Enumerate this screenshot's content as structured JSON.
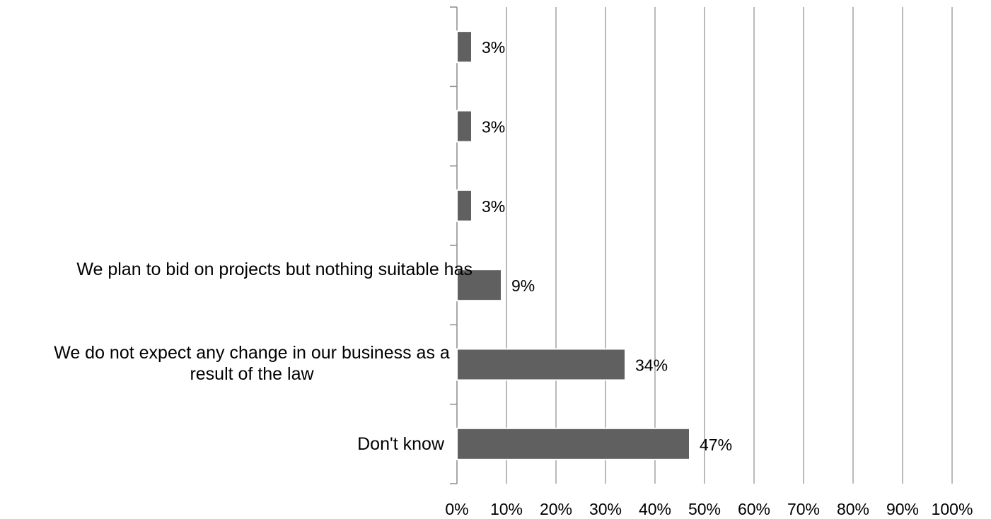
{
  "chart_data": {
    "type": "bar",
    "orientation": "horizontal",
    "title": "",
    "xlabel": "",
    "ylabel": "",
    "xlim": [
      0,
      100
    ],
    "x_ticks": [
      "0%",
      "10%",
      "20%",
      "30%",
      "40%",
      "50%",
      "60%",
      "70%",
      "80%",
      "90%",
      "100%"
    ],
    "grid": true,
    "categories": [
      "",
      "",
      "",
      "We plan to bid on projects but nothing suitable has",
      "We do not expect any change in our business as a result of the law",
      "Don't know"
    ],
    "category_label_lines": [
      [],
      [],
      [],
      [
        "We plan to bid on projects but nothing suitable has"
      ],
      [
        "We do not expect any change in our business as a",
        "result of the law"
      ],
      [
        "Don't know"
      ]
    ],
    "values": [
      3,
      3,
      3,
      9,
      34,
      47
    ],
    "data_labels": [
      "3%",
      "3%",
      "3%",
      "9%",
      "34%",
      "47%"
    ],
    "bar_color": "#606060",
    "grid_color": "#8c8c8c"
  }
}
